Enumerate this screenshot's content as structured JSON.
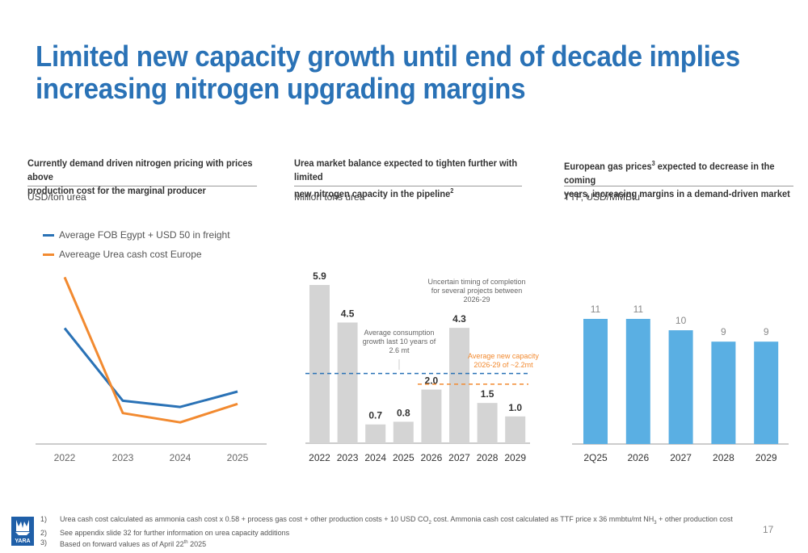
{
  "title": {
    "line1": "Limited new capacity growth until end of decade implies",
    "line2": "increasing nitrogen upgrading margins"
  },
  "panels": [
    {
      "heading_line1": "Currently demand driven nitrogen pricing with prices above",
      "heading_line2": "production cost for the marginal producer",
      "unit": "USD/ton urea"
    },
    {
      "heading_line1": "Urea market balance expected to tighten further with limited",
      "heading_line2": "new nitrogen capacity in the pipeline",
      "heading_sup": "2",
      "unit": "Million tons urea"
    },
    {
      "heading_line1_pre": "European gas prices",
      "heading_line1_sup": "3",
      "heading_line1_post": " expected to decrease in the coming",
      "heading_line2": "years, increasing margins in a demand-driven market",
      "unit": "TTF, USD/MMBtu"
    }
  ],
  "legend": [
    {
      "label": "Average FOB Egypt + USD 50 in freight",
      "color": "#2a72b6"
    },
    {
      "label": "Avereage Urea cash cost Europe",
      "color": "#f28a30"
    }
  ],
  "chart_data": [
    {
      "type": "line",
      "x": [
        "2022",
        "2023",
        "2024",
        "2025"
      ],
      "ylabel": "USD/ton urea",
      "y_ticks_shown": false,
      "series": [
        {
          "name": "Average FOB Egypt + USD 50 in freight",
          "values": [
            75,
            28,
            24,
            34
          ],
          "color": "#2a72b6"
        },
        {
          "name": "Avereage Urea cash cost Europe",
          "values": [
            108,
            20,
            14,
            26
          ],
          "color": "#f28a30"
        }
      ],
      "ylim": [
        0,
        115
      ]
    },
    {
      "type": "bar",
      "categories": [
        "2022",
        "2023",
        "2024",
        "2025",
        "2026",
        "2027",
        "2028",
        "2029"
      ],
      "values": [
        5.9,
        4.5,
        0.7,
        0.8,
        2.0,
        4.3,
        1.5,
        1.0
      ],
      "labels": [
        "5.9",
        "4.5",
        "0.7",
        "0.8",
        "2.0",
        "4.3",
        "1.5",
        "1.0"
      ],
      "bar_color": "#d4d4d4",
      "ylabel": "Million tons urea",
      "ylim": [
        0,
        6
      ],
      "reference_lines": [
        {
          "value": 2.6,
          "label": "Average consumption growth last 10 years of 2.6 mt",
          "color": "#2a72b6",
          "style": "dashed"
        },
        {
          "value": 2.2,
          "label": "Average new capacity 2026-29 of ~2.2mt",
          "color": "#f28a30",
          "style": "dashed"
        }
      ],
      "annotations": [
        {
          "lines": [
            "Uncertain timing of completion",
            "for several projects between",
            "2026-29"
          ]
        },
        {
          "lines": [
            "Average consumption",
            "growth last 10 years of",
            "2.6 mt"
          ]
        },
        {
          "lines": [
            "Average new capacity",
            "2026-29 of ~2.2mt"
          ]
        }
      ]
    },
    {
      "type": "bar",
      "categories": [
        "2Q25",
        "2026",
        "2027",
        "2028",
        "2029"
      ],
      "values": [
        11,
        11,
        10,
        9,
        9
      ],
      "labels": [
        "11",
        "11",
        "10",
        "9",
        "9"
      ],
      "bar_color": "#5aafe3",
      "ylabel": "TTF, USD/MMBtu",
      "ylim": [
        0,
        12
      ]
    }
  ],
  "footnotes": [
    {
      "num": "1)",
      "text_pre": "Urea cash cost calculated as ammonia cash cost x 0.58 + process gas cost + other production costs + 10 USD CO",
      "sub1": "2",
      "text_mid": " cost. Ammonia cash cost calculated as TTF price x 36 mmbtu/mt NH",
      "sub2": "3",
      "text_post": " + other production cost"
    },
    {
      "num": "2)",
      "text": "See appendix slide 32 for further information on urea capacity additions"
    },
    {
      "num": "3)",
      "text_pre": "Based on forward values as of April 22",
      "sup": "th",
      "text_post": " 2025"
    }
  ],
  "page_number": "17",
  "logo_text": "YARA",
  "colors": {
    "title": "#2a72b6",
    "blue": "#2a72b6",
    "orange": "#f28a30",
    "gray_bar": "#d4d4d4",
    "gas_bar": "#5aafe3"
  }
}
